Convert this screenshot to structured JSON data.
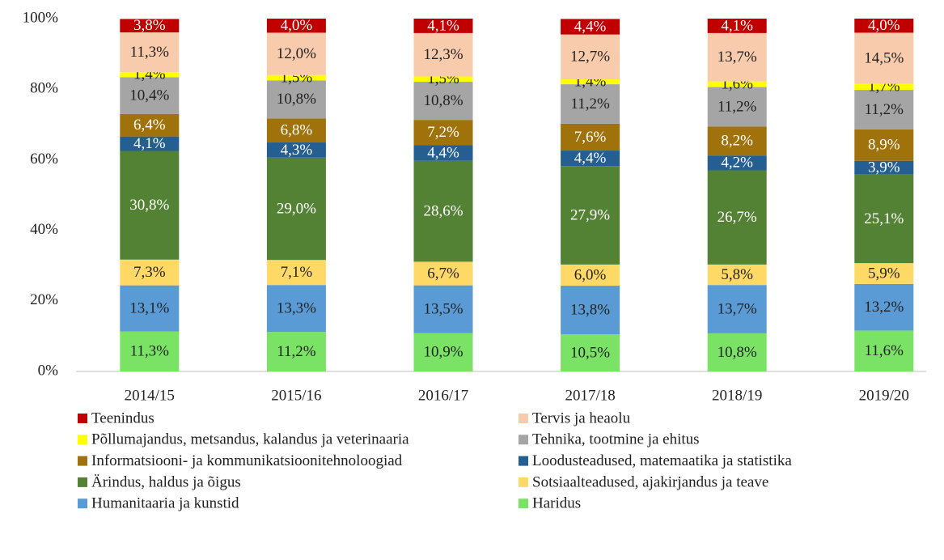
{
  "chart_data": {
    "type": "stacked_bar",
    "categories": [
      "2014/15",
      "2015/16",
      "2016/17",
      "2017/18",
      "2018/19",
      "2019/20"
    ],
    "series": [
      {
        "name": "Haridus",
        "color": "#7ae365",
        "values": [
          11.3,
          11.2,
          10.9,
          10.5,
          10.8,
          11.6
        ],
        "value_labels": [
          "11,3%",
          "11,2%",
          "10,9%",
          "10,5%",
          "10,8%",
          "11,6%"
        ]
      },
      {
        "name": "Humanitaaria ja kunstid",
        "color": "#5b9bd5",
        "values": [
          13.1,
          13.3,
          13.5,
          13.8,
          13.7,
          13.2
        ],
        "value_labels": [
          "13,1%",
          "13,3%",
          "13,5%",
          "13,8%",
          "13,7%",
          "13,2%"
        ]
      },
      {
        "name": "Sotsiaalteadused, ajakirjandus ja teave",
        "color": "#ffd966",
        "values": [
          7.3,
          7.1,
          6.7,
          6.0,
          5.8,
          5.9
        ],
        "value_labels": [
          "7,3%",
          "7,1%",
          "6,7%",
          "6,0%",
          "5,8%",
          "5,9%"
        ]
      },
      {
        "name": "Ärindus, haldus ja õigus",
        "color": "#548235",
        "values": [
          30.8,
          29.0,
          28.6,
          27.9,
          26.7,
          25.1
        ],
        "value_labels": [
          "30,8%",
          "29,0%",
          "28,6%",
          "27,9%",
          "26,7%",
          "25,1%"
        ]
      },
      {
        "name": "Loodusteadused, matemaatika ja statistika",
        "color": "#255e91",
        "values": [
          4.1,
          4.3,
          4.4,
          4.4,
          4.2,
          3.9
        ],
        "value_labels": [
          "4,1%",
          "4,3%",
          "4,4%",
          "4,4%",
          "4,2%",
          "3,9%"
        ]
      },
      {
        "name": "Informatsiooni- ja kommunikatsioonitehnoloogiad",
        "color": "#a0720c",
        "values": [
          6.4,
          6.8,
          7.2,
          7.6,
          8.2,
          8.9
        ],
        "value_labels": [
          "6,4%",
          "6,8%",
          "7,2%",
          "7,6%",
          "8,2%",
          "8,9%"
        ]
      },
      {
        "name": "Tehnika, tootmine ja ehitus",
        "color": "#a5a5a5",
        "values": [
          10.4,
          10.8,
          10.8,
          11.2,
          11.2,
          11.2
        ],
        "value_labels": [
          "10,4%",
          "10,8%",
          "10,8%",
          "11,2%",
          "11,2%",
          "11,2%"
        ]
      },
      {
        "name": "Põllumajandus, metsandus, kalandus ja veterinaaria",
        "color": "#ffff00",
        "values": [
          1.4,
          1.5,
          1.5,
          1.4,
          1.6,
          1.7
        ],
        "value_labels": [
          "1,4%",
          "1,5%",
          "1,5%",
          "1,4%",
          "1,6%",
          "1,7%"
        ]
      },
      {
        "name": "Tervis ja heaolu",
        "color": "#f8cbad",
        "values": [
          11.3,
          12.0,
          12.3,
          12.7,
          13.7,
          14.5
        ],
        "value_labels": [
          "11,3%",
          "12,0%",
          "12,3%",
          "12,7%",
          "13,7%",
          "14,5%"
        ]
      },
      {
        "name": "Teenindus",
        "color": "#c00000",
        "values": [
          3.8,
          4.0,
          4.1,
          4.4,
          4.1,
          4.0
        ],
        "value_labels": [
          "3,8%",
          "4,0%",
          "4,1%",
          "4,4%",
          "4,1%",
          "4,0%"
        ]
      }
    ],
    "ylim": [
      0,
      100
    ],
    "yticks": [
      {
        "value": 0,
        "label": "0%"
      },
      {
        "value": 20,
        "label": "20%"
      },
      {
        "value": 40,
        "label": "40%"
      },
      {
        "value": 60,
        "label": "60%"
      },
      {
        "value": 80,
        "label": "80%"
      },
      {
        "value": 100,
        "label": "100%"
      }
    ],
    "grid": false,
    "legend": "bottom"
  }
}
